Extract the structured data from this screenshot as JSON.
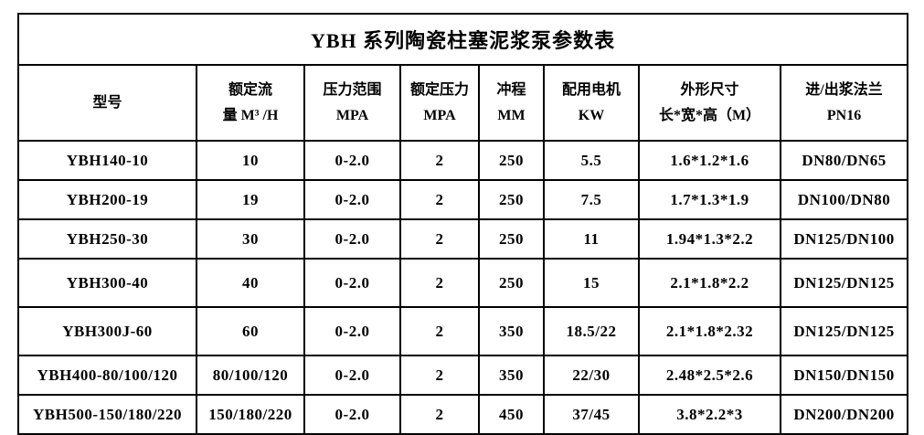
{
  "colors": {
    "background": "#ffffff",
    "border": "#000000",
    "text": "#000000"
  },
  "table": {
    "title": "YBH 系列陶瓷柱塞泥浆泵参数表",
    "headers": [
      "型号",
      "额定流\n量 M³ /H",
      "压力范围\nMPA",
      "额定压力\nMPA",
      "冲程\nMM",
      "配用电机\nKW",
      "外形尺寸\n长*宽*高（M）",
      "进/出浆法兰\nPN16"
    ],
    "rows": [
      [
        "YBH140-10",
        "10",
        "0-2.0",
        "2",
        "250",
        "5.5",
        "1.6*1.2*1.6",
        "DN80/DN65"
      ],
      [
        "YBH200-19",
        "19",
        "0-2.0",
        "2",
        "250",
        "7.5",
        "1.7*1.3*1.9",
        "DN100/DN80"
      ],
      [
        "YBH250-30",
        "30",
        "0-2.0",
        "2",
        "250",
        "11",
        "1.94*1.3*2.2",
        "DN125/DN100"
      ],
      [
        "YBH300-40",
        "40",
        "0-2.0",
        "2",
        "250",
        "15",
        "2.1*1.8*2.2",
        "DN125/DN125"
      ],
      [
        "YBH300J-60",
        "60",
        "0-2.0",
        "2",
        "350",
        "18.5/22",
        "2.1*1.8*2.32",
        "DN125/DN125"
      ],
      [
        "YBH400-80/100/120",
        "80/100/120",
        "0-2.0",
        "2",
        "350",
        "22/30",
        "2.48*2.5*2.6",
        "DN150/DN150"
      ],
      [
        "YBH500-150/180/220",
        "150/180/220",
        "0-2.0",
        "2",
        "450",
        "37/45",
        "3.8*2.2*3",
        "DN200/DN200"
      ]
    ]
  }
}
